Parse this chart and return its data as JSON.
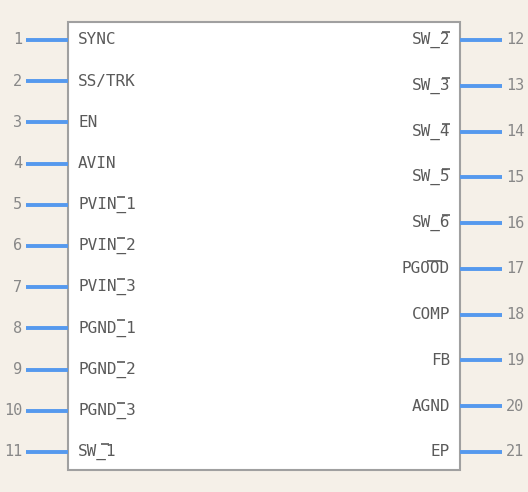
{
  "background_color": "#f5f0e8",
  "box_color": "#a0a0a0",
  "pin_color": "#5599ee",
  "text_color": "#5a5a5a",
  "number_color": "#888888",
  "left_pins": [
    {
      "num": 1,
      "label": "SYNC",
      "bar_over": ""
    },
    {
      "num": 2,
      "label": "SS/TRK",
      "bar_over": ""
    },
    {
      "num": 3,
      "label": "EN",
      "bar_over": ""
    },
    {
      "num": 4,
      "label": "AVIN",
      "bar_over": ""
    },
    {
      "num": 5,
      "label": "PVIN_1",
      "bar_over": "1"
    },
    {
      "num": 6,
      "label": "PVIN_2",
      "bar_over": "2"
    },
    {
      "num": 7,
      "label": "PVIN_3",
      "bar_over": "3"
    },
    {
      "num": 8,
      "label": "PGND_1",
      "bar_over": "1"
    },
    {
      "num": 9,
      "label": "PGND_2",
      "bar_over": "2"
    },
    {
      "num": 10,
      "label": "PGND_3",
      "bar_over": "3"
    },
    {
      "num": 11,
      "label": "SW_1",
      "bar_over": "1"
    }
  ],
  "right_pins": [
    {
      "num": 12,
      "label": "SW_2",
      "bar_over": "2"
    },
    {
      "num": 13,
      "label": "SW_3",
      "bar_over": "3"
    },
    {
      "num": 14,
      "label": "SW_4",
      "bar_over": "4"
    },
    {
      "num": 15,
      "label": "SW_5",
      "bar_over": "5"
    },
    {
      "num": 16,
      "label": "SW_6",
      "bar_over": "6"
    },
    {
      "num": 17,
      "label": "PGOOD",
      "bar_over": "OO"
    },
    {
      "num": 18,
      "label": "COMP",
      "bar_over": ""
    },
    {
      "num": 19,
      "label": "FB",
      "bar_over": ""
    },
    {
      "num": 20,
      "label": "AGND",
      "bar_over": ""
    },
    {
      "num": 21,
      "label": "EP",
      "bar_over": ""
    }
  ],
  "figsize": [
    5.28,
    4.92
  ],
  "dpi": 100
}
